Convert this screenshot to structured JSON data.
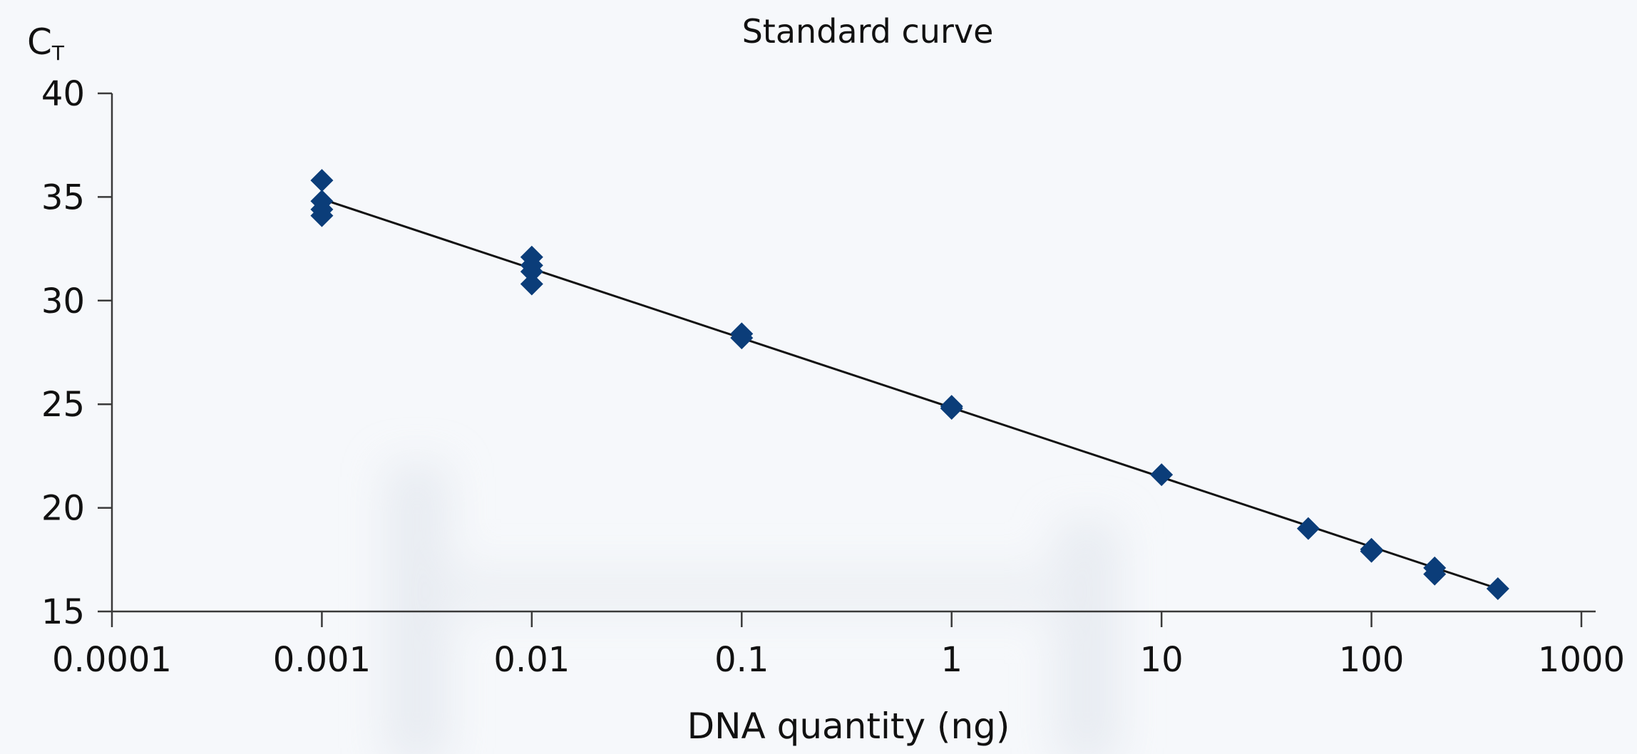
{
  "chart_data": {
    "type": "scatter",
    "title": "Standard curve",
    "ylabel": {
      "main": "C",
      "sub": "T"
    },
    "xlabel": "DNA quantity (ng)",
    "x_scale": "log",
    "xlim": [
      0.0001,
      1000
    ],
    "ylim": [
      15,
      40
    ],
    "x_ticks": [
      0.0001,
      0.001,
      0.01,
      0.1,
      1,
      10,
      100,
      1000
    ],
    "x_tick_labels": [
      "0.0001",
      "0.001",
      "0.01",
      "0.1",
      "1",
      "10",
      "100",
      "1000"
    ],
    "y_ticks": [
      15,
      20,
      25,
      30,
      35,
      40
    ],
    "y_tick_labels": [
      "15",
      "20",
      "25",
      "30",
      "35",
      "40"
    ],
    "grid": false,
    "legend": "none",
    "marker": "diamond",
    "marker_color": "#0b3d79",
    "line_color": "#111111",
    "points": [
      [
        0.001,
        35.8
      ],
      [
        0.001,
        34.8
      ],
      [
        0.001,
        34.4
      ],
      [
        0.001,
        34.1
      ],
      [
        0.01,
        32.1
      ],
      [
        0.01,
        31.7
      ],
      [
        0.01,
        31.4
      ],
      [
        0.01,
        30.8
      ],
      [
        0.1,
        28.4
      ],
      [
        0.1,
        28.2
      ],
      [
        1,
        24.9
      ],
      [
        1,
        24.8
      ],
      [
        10,
        21.6
      ],
      [
        50,
        19.0
      ],
      [
        100,
        18.0
      ],
      [
        100,
        17.9
      ],
      [
        200,
        17.1
      ],
      [
        200,
        16.8
      ],
      [
        400,
        16.1
      ]
    ],
    "trendline": {
      "from": [
        0.001,
        34.9
      ],
      "to": [
        400,
        16.1
      ]
    }
  }
}
